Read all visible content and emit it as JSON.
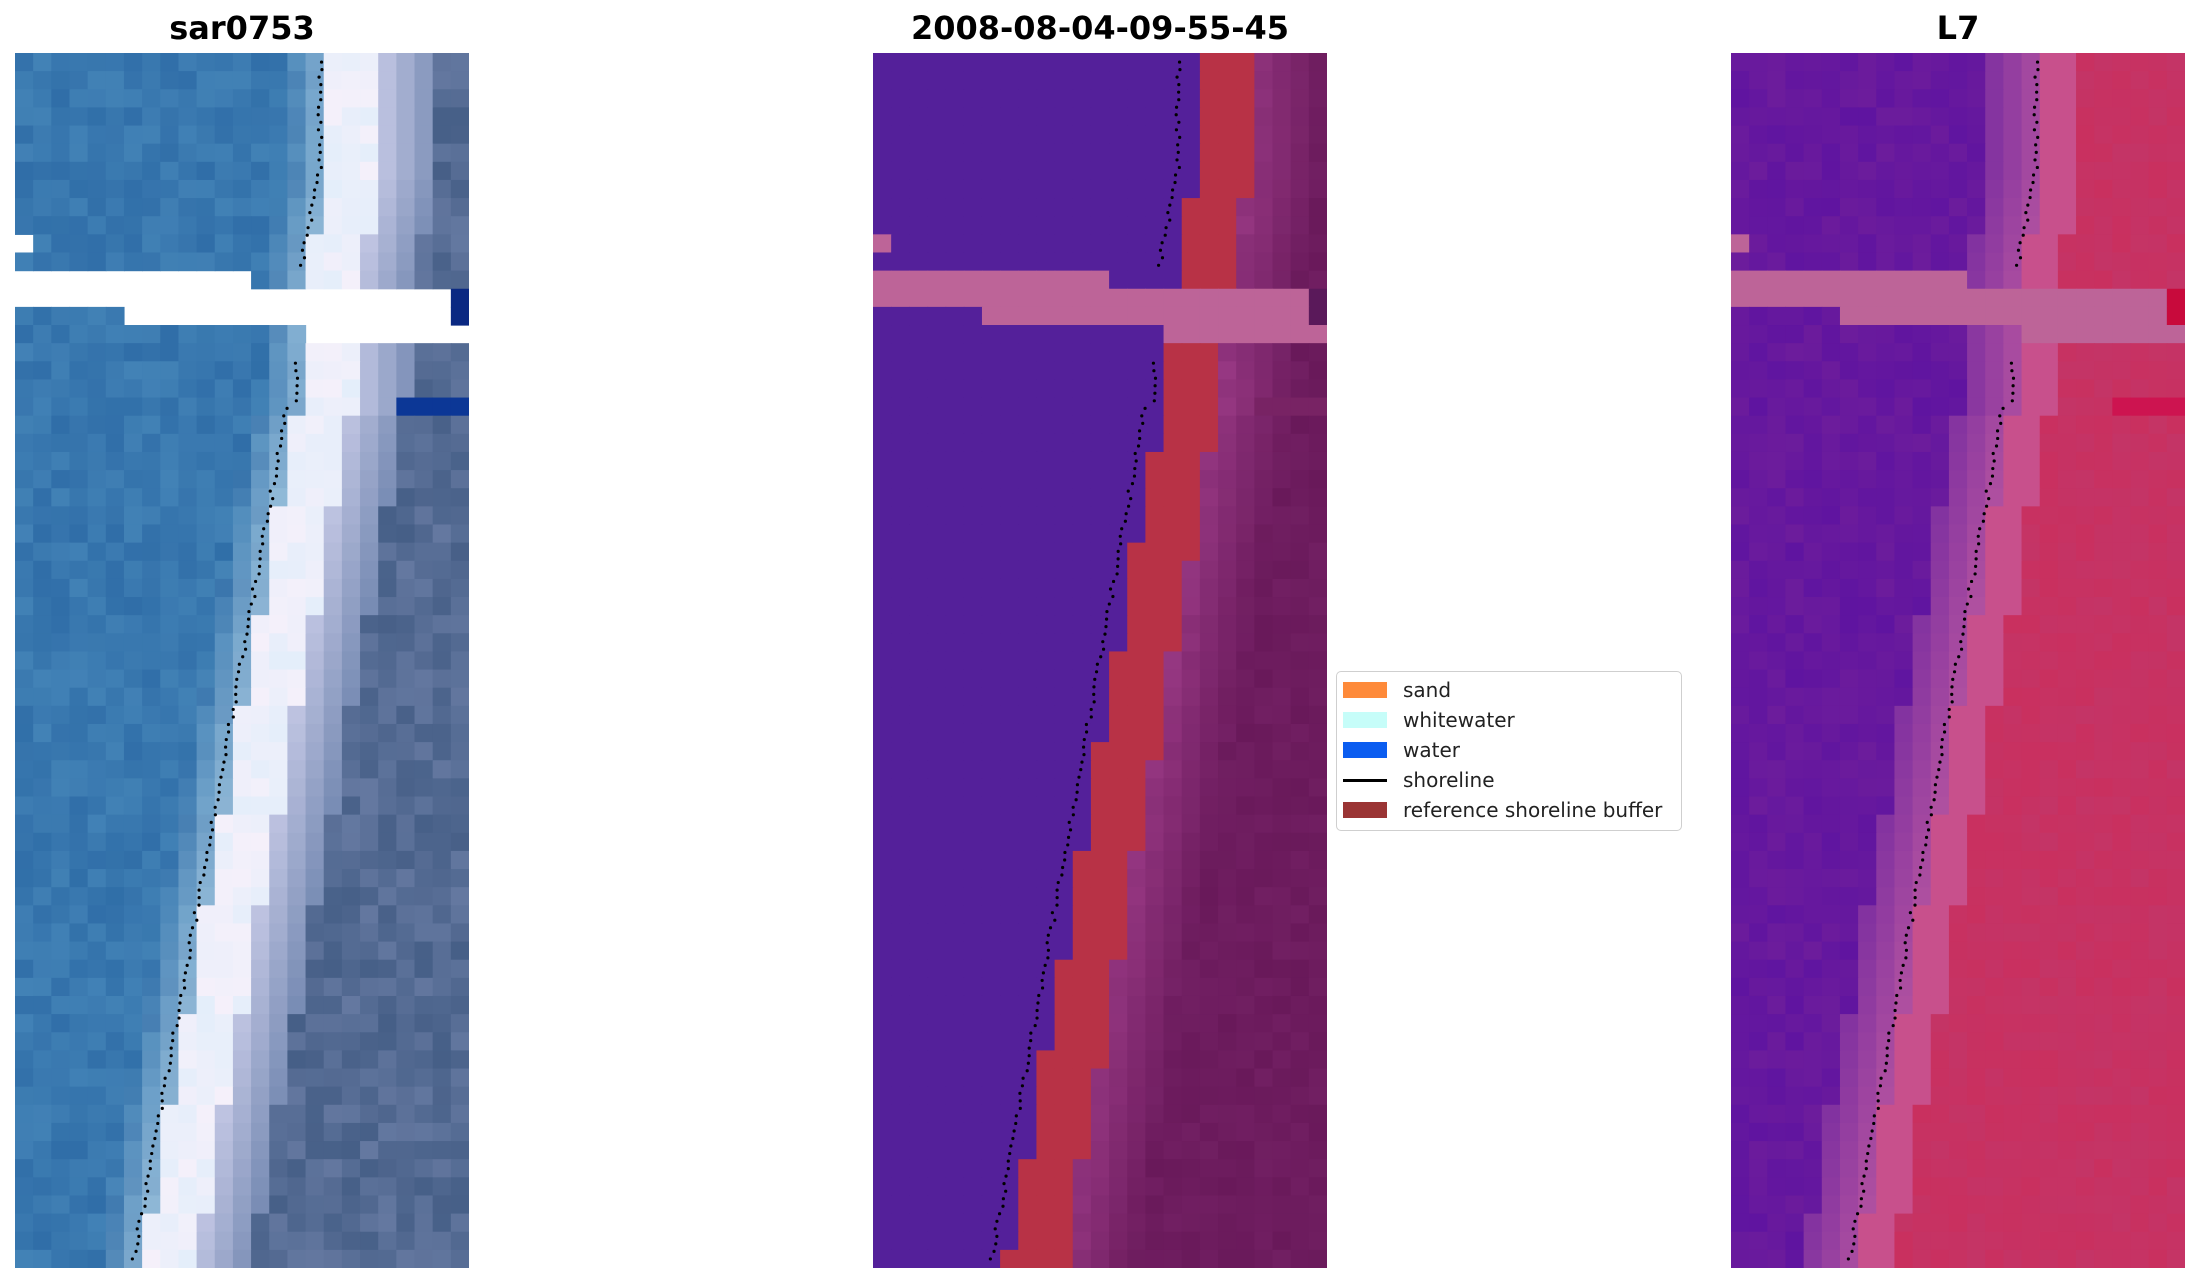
{
  "panels": [
    {
      "title": "sar0753",
      "style": "rgb"
    },
    {
      "title": "2008-08-04-09-55-45",
      "style": "class"
    },
    {
      "title": "L7",
      "style": "index"
    }
  ],
  "legend": {
    "items": [
      {
        "label": "sand",
        "color": "#fe8a3a",
        "kind": "patch"
      },
      {
        "label": "whitewater",
        "color": "#c6fdf9",
        "kind": "patch"
      },
      {
        "label": "water",
        "color": "#0b5df0",
        "kind": "patch"
      },
      {
        "label": "shoreline",
        "color": "#000000",
        "kind": "line"
      },
      {
        "label": "reference shoreline buffer",
        "color": "#9a3434",
        "kind": "patch"
      }
    ]
  },
  "colors": {
    "nodata": "#bd6498",
    "ocean": "#54209a",
    "buffer": "#b83246",
    "land_index": "#c43466",
    "water_index": "#6c1c9c"
  }
}
